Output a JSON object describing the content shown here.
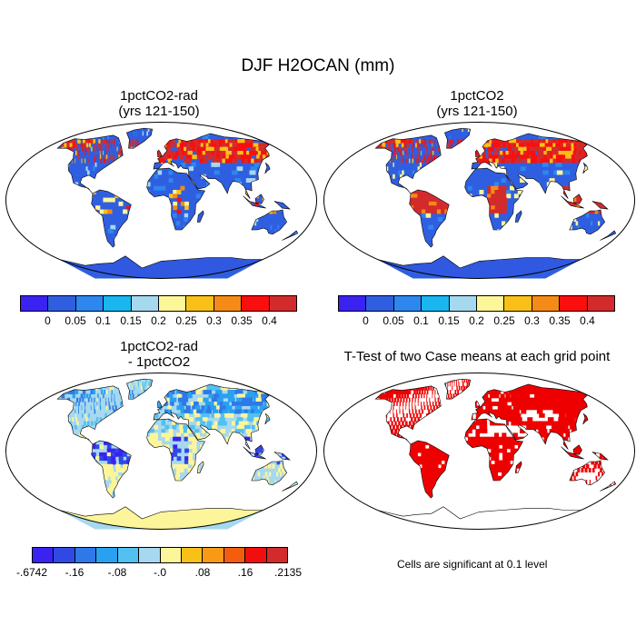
{
  "figure": {
    "title": "DJF H2OCAN (mm)"
  },
  "panels": [
    {
      "title_line1": "1pctCO2-rad",
      "title_line2": "(yrs 121-150)",
      "kind": "field",
      "scheme": "low"
    },
    {
      "title_line1": "1pctCO2",
      "title_line2": "(yrs 121-150)",
      "kind": "field",
      "scheme": "high"
    },
    {
      "title_line1": "1pctCO2-rad",
      "title_line2": "- 1pctCO2",
      "kind": "diff",
      "scheme": "diff"
    },
    {
      "title_line1": "T-Test of two Case means at each grid point",
      "title_line2": "",
      "kind": "ttest",
      "scheme": "sig"
    }
  ],
  "colorbars": {
    "field": {
      "colors": [
        "#3a22f0",
        "#2f5fe0",
        "#2f86ee",
        "#19b6f0",
        "#a6d8f0",
        "#fdf59a",
        "#f9c117",
        "#f68a16",
        "#fa0e0e",
        "#d32b2b"
      ],
      "labels": [
        "0",
        "0.05",
        "0.1",
        "0.15",
        "0.2",
        "0.25",
        "0.3",
        "0.35",
        "0.4"
      ]
    },
    "diff": {
      "colors": [
        "#3a22f0",
        "#3049e5",
        "#2f78e8",
        "#2aa0f0",
        "#52c0f0",
        "#a6d8f0",
        "#fdf59a",
        "#f9c117",
        "#f99a16",
        "#f35d0e",
        "#f30e0e",
        "#d32b2b"
      ],
      "labels": [
        "-.6742",
        "-.16",
        "-.08",
        "-.0",
        ".08",
        ".16",
        ".2135"
      ]
    }
  },
  "significance_note": "Cells are significant at 0.1 level",
  "colors": {
    "ocean": "#ffffff",
    "sig_red": "#ee0000",
    "antarctica_field": "#3158e0",
    "antarctica_diff": "#fdf59a"
  }
}
